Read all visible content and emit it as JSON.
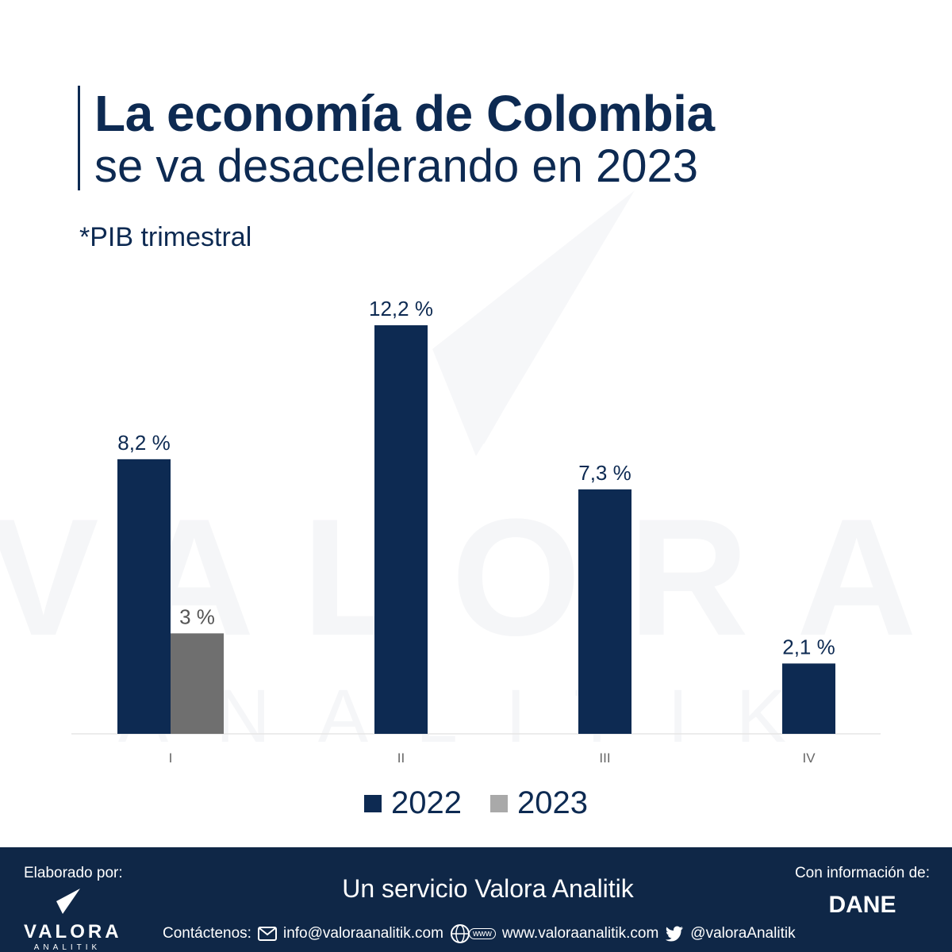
{
  "header": {
    "title_line1": "La economía de Colombia",
    "title_line2": "se va desacelerando en 2023",
    "subtitle": "*PIB trimestral"
  },
  "watermark": {
    "word": "VALORA",
    "sub": "ANALITIK"
  },
  "chart_data": {
    "type": "bar",
    "categories": [
      "I",
      "II",
      "III",
      "IV"
    ],
    "series": [
      {
        "name": "2022",
        "values": [
          8.2,
          12.2,
          7.3,
          2.1
        ],
        "labels": [
          "8,2 %",
          "12,2 %",
          "7,3 %",
          "2,1 %"
        ],
        "color": "#0d2a52"
      },
      {
        "name": "2023",
        "values": [
          3,
          null,
          null,
          null
        ],
        "labels": [
          "3 %",
          "",
          "",
          ""
        ],
        "color": "#6f6f6f"
      }
    ],
    "title": "",
    "xlabel": "",
    "ylabel": "",
    "ylim": [
      0,
      12.2
    ],
    "grid": false,
    "legend": "bottom-center"
  },
  "legend": {
    "item1": "2022",
    "item2": "2023",
    "color1": "#0d2a52",
    "color2": "#a9a9a9"
  },
  "footer": {
    "made_by": "Elaborado por:",
    "logo_word": "VALORA",
    "logo_sub": "ANALITIK",
    "service": "Un servicio Valora Analitik",
    "info_label": "Con información de:",
    "source": "DANE",
    "contact_label": "Contáctenos:",
    "email": "info@valoraanalitik.com",
    "web_badge": "www",
    "website": "www.valoraanalitik.com",
    "twitter": "@valoraAnalitik"
  },
  "icons": [
    "envelope-icon",
    "globe-icon",
    "twitter-icon",
    "valora-logo-icon"
  ]
}
